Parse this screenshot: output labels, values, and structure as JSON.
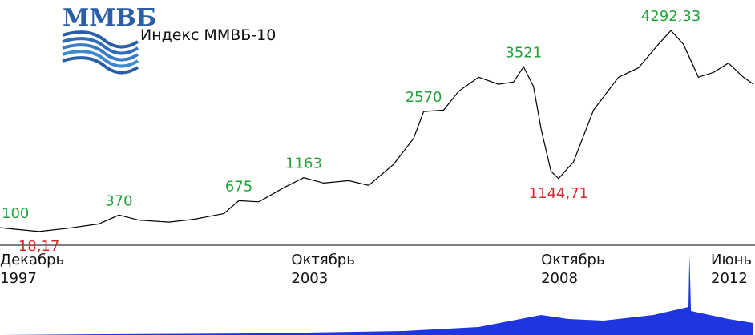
{
  "chart_data": {
    "type": "line",
    "title": "Индекс ММВБ-10",
    "logo_text": "ММВБ",
    "x_tick_labels": [
      {
        "line1": "Декабрь",
        "line2": "1997"
      },
      {
        "line1": "Октябрь",
        "line2": "2003"
      },
      {
        "line1": "Октябрь",
        "line2": "2008"
      },
      {
        "line1": "Июнь",
        "line2": "2012"
      }
    ],
    "x_ticks_year": [
      1997.92,
      2003.75,
      2008.75,
      2012.42
    ],
    "xlim": [
      1997.92,
      2013.0
    ],
    "ylim": [
      0,
      4600
    ],
    "grid": false,
    "series": [
      {
        "line_color": "#000000",
        "points": [
          [
            1997.92,
            100
          ],
          [
            1998.3,
            60
          ],
          [
            1998.7,
            18.17
          ],
          [
            1999.3,
            90
          ],
          [
            1999.9,
            180
          ],
          [
            2000.3,
            370
          ],
          [
            2000.7,
            260
          ],
          [
            2001.3,
            220
          ],
          [
            2001.8,
            280
          ],
          [
            2002.4,
            400
          ],
          [
            2002.7,
            675
          ],
          [
            2003.1,
            650
          ],
          [
            2003.6,
            950
          ],
          [
            2004.0,
            1163
          ],
          [
            2004.4,
            1050
          ],
          [
            2004.9,
            1100
          ],
          [
            2005.3,
            1000
          ],
          [
            2005.8,
            1450
          ],
          [
            2006.2,
            2000
          ],
          [
            2006.4,
            2570
          ],
          [
            2006.8,
            2600
          ],
          [
            2007.1,
            3000
          ],
          [
            2007.5,
            3300
          ],
          [
            2007.9,
            3150
          ],
          [
            2008.2,
            3200
          ],
          [
            2008.4,
            3521
          ],
          [
            2008.6,
            3100
          ],
          [
            2008.75,
            2200
          ],
          [
            2008.95,
            1300
          ],
          [
            2009.1,
            1144.71
          ],
          [
            2009.4,
            1500
          ],
          [
            2009.8,
            2600
          ],
          [
            2010.3,
            3300
          ],
          [
            2010.7,
            3500
          ],
          [
            2011.1,
            4000
          ],
          [
            2011.35,
            4292.33
          ],
          [
            2011.6,
            4000
          ],
          [
            2011.9,
            3300
          ],
          [
            2012.2,
            3400
          ],
          [
            2012.5,
            3600
          ],
          [
            2012.8,
            3300
          ],
          [
            2013.0,
            3150
          ]
        ]
      }
    ],
    "volume": {
      "color": "#1f35e0",
      "points": [
        [
          1997.92,
          0.0
        ],
        [
          2000.0,
          0.01
        ],
        [
          2003.0,
          0.02
        ],
        [
          2006.0,
          0.05
        ],
        [
          2007.5,
          0.1
        ],
        [
          2008.75,
          0.25
        ],
        [
          2009.3,
          0.2
        ],
        [
          2010.0,
          0.18
        ],
        [
          2011.0,
          0.25
        ],
        [
          2011.7,
          0.35
        ],
        [
          2011.72,
          1.0
        ],
        [
          2011.75,
          0.3
        ],
        [
          2012.5,
          0.2
        ],
        [
          2013.0,
          0.15
        ]
      ]
    },
    "annotations": [
      {
        "label": "100",
        "x": 1997.92,
        "y": 100,
        "color": "#22a33a"
      },
      {
        "label": "18,17",
        "x": 1998.7,
        "y": 18.17,
        "color": "#d62b2b"
      },
      {
        "label": "370",
        "x": 2000.3,
        "y": 370,
        "color": "#22a33a"
      },
      {
        "label": "675",
        "x": 2002.7,
        "y": 675,
        "color": "#22a33a"
      },
      {
        "label": "1163",
        "x": 2004.0,
        "y": 1163,
        "color": "#22a33a"
      },
      {
        "label": "2570",
        "x": 2006.4,
        "y": 2570,
        "color": "#22a33a"
      },
      {
        "label": "3521",
        "x": 2008.4,
        "y": 3521,
        "color": "#22a33a"
      },
      {
        "label": "1144,71",
        "x": 2009.1,
        "y": 1144.71,
        "color": "#d62b2b"
      },
      {
        "label": "4292,33",
        "x": 2011.35,
        "y": 4292.33,
        "color": "#22a33a"
      }
    ]
  }
}
